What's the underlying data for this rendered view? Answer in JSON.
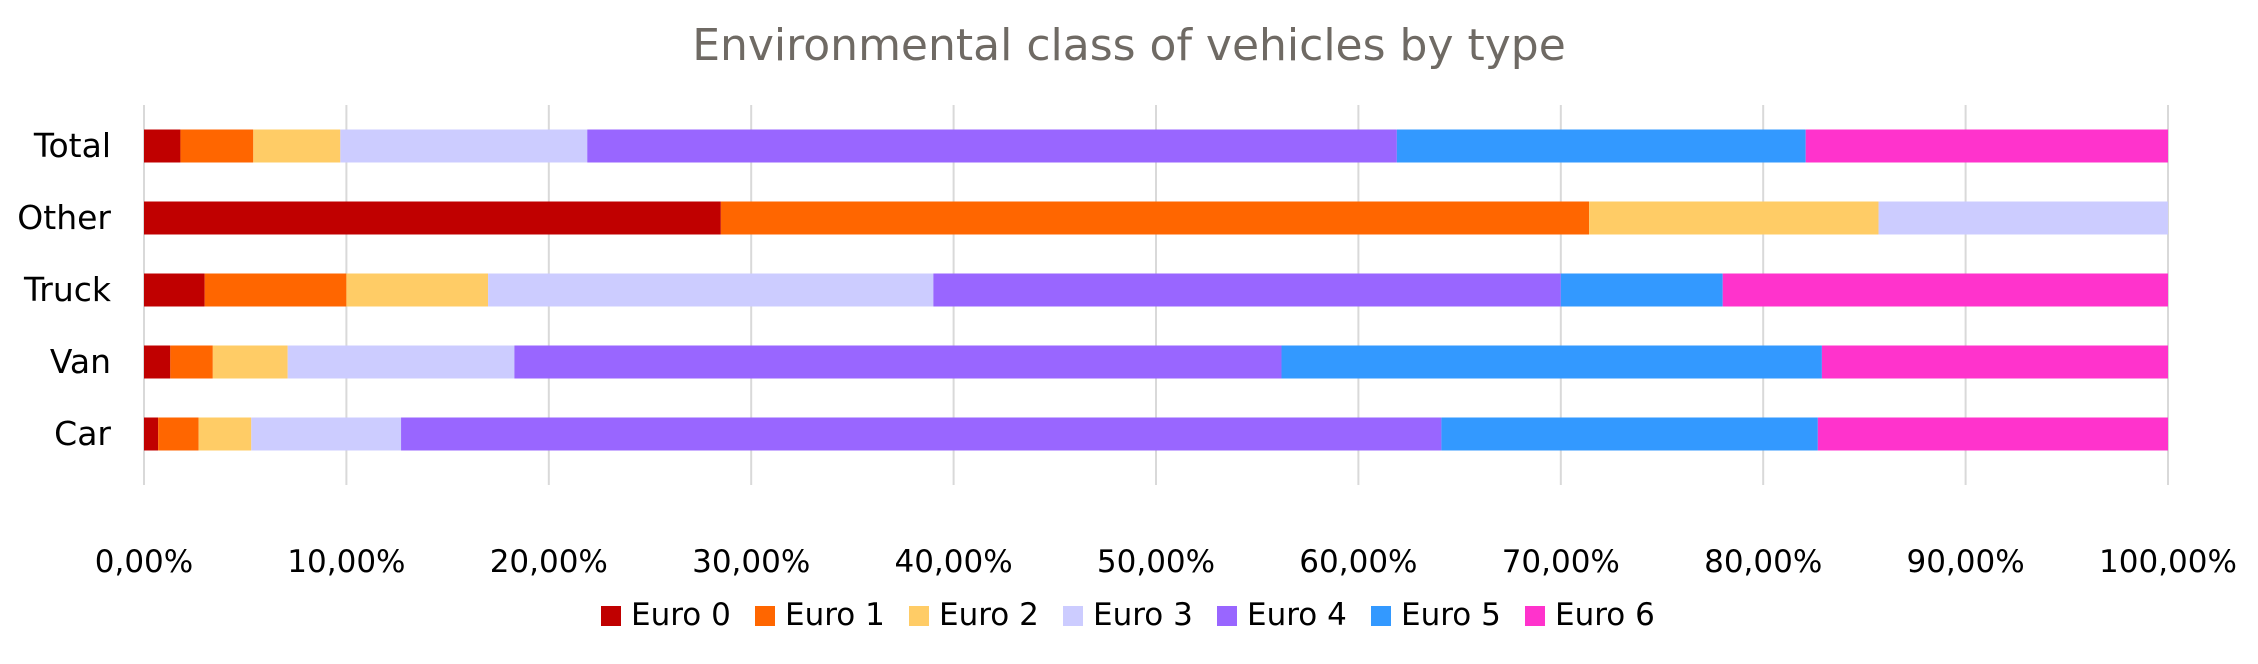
{
  "chart_data": {
    "type": "bar",
    "orientation": "horizontal",
    "stacked": true,
    "title": "Environmental class of vehicles by type",
    "categories": [
      "Total",
      "Other",
      "Truck",
      "Van",
      "Car"
    ],
    "series": [
      {
        "name": "Euro 0",
        "color": "#c00000",
        "values": [
          1.8,
          28.5,
          3.0,
          1.3,
          0.7
        ]
      },
      {
        "name": "Euro 1",
        "color": "#ff6600",
        "values": [
          3.6,
          42.9,
          7.0,
          2.1,
          2.0
        ]
      },
      {
        "name": "Euro 2",
        "color": "#ffcc66",
        "values": [
          4.3,
          14.3,
          7.0,
          3.7,
          2.6
        ]
      },
      {
        "name": "Euro 3",
        "color": "#ccccff",
        "values": [
          12.2,
          14.3,
          22.0,
          11.2,
          7.4
        ]
      },
      {
        "name": "Euro 4",
        "color": "#9966ff",
        "values": [
          40.0,
          0,
          31.0,
          37.9,
          51.4
        ]
      },
      {
        "name": "Euro 5",
        "color": "#3399ff",
        "values": [
          20.2,
          0,
          8.0,
          26.7,
          18.6
        ]
      },
      {
        "name": "Euro 6",
        "color": "#ff33cc",
        "values": [
          17.9,
          0,
          22.0,
          17.1,
          17.3
        ]
      }
    ],
    "xlim": [
      0,
      100
    ],
    "xticks": [
      "0,00%",
      "10,00%",
      "20,00%",
      "30,00%",
      "40,00%",
      "50,00%",
      "60,00%",
      "70,00%",
      "80,00%",
      "90,00%",
      "100,00%"
    ],
    "grid": true,
    "legend": "bottom"
  }
}
